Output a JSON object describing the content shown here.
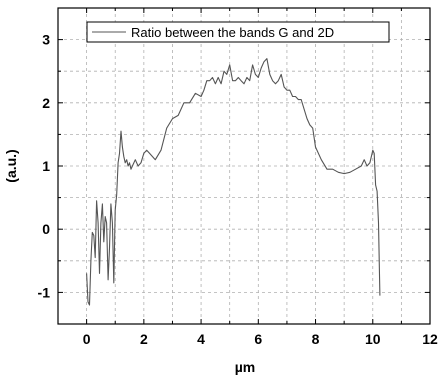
{
  "chart_data": {
    "type": "line",
    "title": "",
    "xlabel": "µm",
    "ylabel": "(a.u.)",
    "xlim": [
      -1,
      12
    ],
    "ylim": [
      -1.5,
      3.5
    ],
    "x_ticks": [
      0,
      2,
      4,
      6,
      8,
      10,
      12
    ],
    "y_ticks": [
      -1,
      0,
      1,
      2,
      3
    ],
    "x_tick_labels": [
      "0",
      "2",
      "4",
      "6",
      "8",
      "10",
      "12"
    ],
    "y_tick_labels": [
      "-1",
      "0",
      "1",
      "2",
      "3"
    ],
    "grid": true,
    "legend": {
      "placement": "top-right"
    },
    "series": [
      {
        "name": "Ratio between the bands G and 2D",
        "color": "#555555",
        "x": [
          0.0,
          0.05,
          0.1,
          0.15,
          0.2,
          0.25,
          0.3,
          0.35,
          0.4,
          0.45,
          0.5,
          0.55,
          0.6,
          0.65,
          0.7,
          0.75,
          0.8,
          0.85,
          0.9,
          0.95,
          1.0,
          1.05,
          1.1,
          1.15,
          1.2,
          1.25,
          1.3,
          1.35,
          1.4,
          1.45,
          1.5,
          1.55,
          1.6,
          1.7,
          1.8,
          1.9,
          2.0,
          2.1,
          2.2,
          2.4,
          2.6,
          2.8,
          3.0,
          3.2,
          3.4,
          3.6,
          3.8,
          4.0,
          4.1,
          4.2,
          4.3,
          4.4,
          4.5,
          4.6,
          4.7,
          4.8,
          4.9,
          5.0,
          5.1,
          5.2,
          5.3,
          5.4,
          5.5,
          5.6,
          5.7,
          5.8,
          5.9,
          6.0,
          6.1,
          6.2,
          6.3,
          6.4,
          6.5,
          6.6,
          6.7,
          6.8,
          6.9,
          7.0,
          7.1,
          7.2,
          7.3,
          7.4,
          7.5,
          7.6,
          7.7,
          7.8,
          7.9,
          8.0,
          8.2,
          8.4,
          8.6,
          8.8,
          9.0,
          9.2,
          9.4,
          9.6,
          9.7,
          9.8,
          9.9,
          10.0,
          10.05,
          10.1,
          10.15,
          10.2,
          10.25
        ],
        "values": [
          -0.7,
          -1.15,
          -1.2,
          -0.5,
          -0.05,
          -0.1,
          -0.45,
          0.45,
          0.1,
          -0.7,
          0.1,
          0.4,
          -0.2,
          0.2,
          0.1,
          -0.8,
          -0.3,
          0.4,
          0.1,
          -0.85,
          0.3,
          0.55,
          1.05,
          1.2,
          1.55,
          1.3,
          1.15,
          1.05,
          1.1,
          1.0,
          1.05,
          0.95,
          1.0,
          1.1,
          1.0,
          1.05,
          1.2,
          1.25,
          1.2,
          1.1,
          1.25,
          1.6,
          1.75,
          1.8,
          2.0,
          2.0,
          2.15,
          2.1,
          2.2,
          2.35,
          2.35,
          2.4,
          2.3,
          2.4,
          2.3,
          2.5,
          2.45,
          2.6,
          2.35,
          2.35,
          2.4,
          2.35,
          2.3,
          2.4,
          2.35,
          2.6,
          2.45,
          2.4,
          2.55,
          2.65,
          2.7,
          2.45,
          2.35,
          2.3,
          2.35,
          2.45,
          2.25,
          2.2,
          2.2,
          2.1,
          2.1,
          2.05,
          2.05,
          1.9,
          1.75,
          1.65,
          1.6,
          1.3,
          1.1,
          0.95,
          0.95,
          0.9,
          0.88,
          0.9,
          0.95,
          1.0,
          1.1,
          1.0,
          1.05,
          1.25,
          1.2,
          0.7,
          0.6,
          0.1,
          -1.05
        ]
      }
    ]
  }
}
